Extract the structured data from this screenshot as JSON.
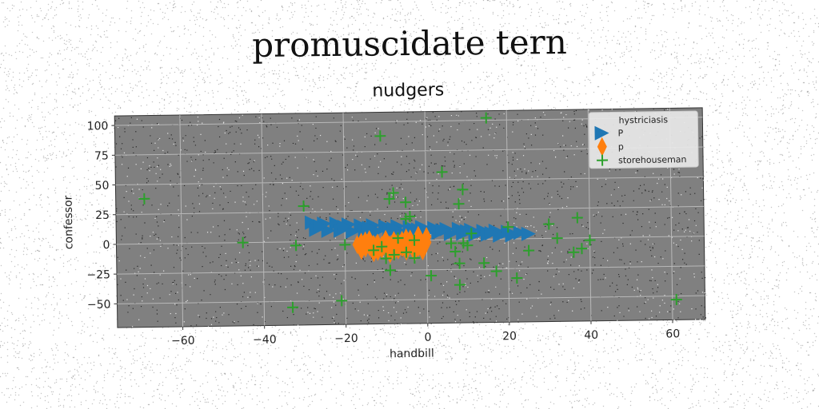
{
  "figure": {
    "suptitle": "promuscidate tern"
  },
  "chart_data": {
    "type": "scatter",
    "title": "nudgers",
    "xlabel": "handbill",
    "ylabel": "confessor",
    "xlim": [
      -76,
      68
    ],
    "ylim": [
      -70,
      108
    ],
    "xticks": [
      -60,
      -40,
      -20,
      0,
      20,
      40,
      60
    ],
    "yticks": [
      -50,
      -25,
      0,
      25,
      50,
      75,
      100
    ],
    "grid": true,
    "legend": {
      "title": "hystriciasis",
      "placement": "upper right"
    },
    "colors": {
      "axes_bg": "#808080",
      "grid": "#b8b8b8"
    },
    "series": [
      {
        "name": "P",
        "marker": "triangle-right",
        "color": "#1f77b4",
        "points": [
          [
            -28,
            16
          ],
          [
            -25,
            15
          ],
          [
            -22,
            15
          ],
          [
            -19,
            14
          ],
          [
            -16,
            13
          ],
          [
            -13,
            13
          ],
          [
            -10,
            12
          ],
          [
            -7,
            12
          ],
          [
            -4,
            11
          ],
          [
            -1,
            11
          ],
          [
            2,
            10
          ],
          [
            5,
            9
          ],
          [
            8,
            9
          ],
          [
            11,
            8
          ],
          [
            14,
            7
          ],
          [
            17,
            7
          ],
          [
            20,
            6
          ],
          [
            23,
            5
          ],
          [
            25,
            4
          ],
          [
            -27,
            10
          ],
          [
            -24,
            9
          ],
          [
            -21,
            9
          ],
          [
            -18,
            8
          ],
          [
            -15,
            8
          ],
          [
            -12,
            8
          ],
          [
            -9,
            7
          ],
          [
            -6,
            7
          ],
          [
            -3,
            7
          ],
          [
            0,
            6
          ],
          [
            3,
            6
          ],
          [
            6,
            5
          ],
          [
            9,
            5
          ],
          [
            12,
            4
          ],
          [
            15,
            4
          ],
          [
            18,
            3
          ],
          [
            21,
            3
          ],
          [
            -26,
            13
          ],
          [
            -20,
            12
          ],
          [
            -14,
            11
          ],
          [
            -8,
            10
          ],
          [
            -2,
            9
          ],
          [
            4,
            8
          ],
          [
            10,
            7
          ],
          [
            16,
            5
          ]
        ]
      },
      {
        "name": "p",
        "marker": "thin-diamond",
        "color": "#ff7f0e",
        "points": [
          [
            -17,
            -3
          ],
          [
            -16,
            -8
          ],
          [
            -15,
            0
          ],
          [
            -14,
            -5
          ],
          [
            -13,
            -10
          ],
          [
            -12,
            -2
          ],
          [
            -11,
            -7
          ],
          [
            -10,
            1
          ],
          [
            -9,
            -4
          ],
          [
            -8,
            -9
          ],
          [
            -7,
            -1
          ],
          [
            -6,
            -6
          ],
          [
            -5,
            2
          ],
          [
            -4,
            -3
          ],
          [
            -3,
            -8
          ],
          [
            -2,
            0
          ],
          [
            -1,
            -5
          ],
          [
            0,
            -2
          ],
          [
            -14,
            1
          ],
          [
            -12,
            -9
          ],
          [
            -9,
            -11
          ],
          [
            -6,
            0
          ],
          [
            -3,
            -10
          ],
          [
            0,
            3
          ],
          [
            -16,
            -1
          ],
          [
            -11,
            -4
          ],
          [
            -7,
            -8
          ],
          [
            -2,
            -6
          ],
          [
            -15,
            -6
          ],
          [
            -5,
            -9
          ],
          [
            -10,
            -6
          ],
          [
            -4,
            1
          ],
          [
            -1,
            -9
          ],
          [
            -13,
            -3
          ],
          [
            -8,
            0
          ],
          [
            -2,
            4
          ]
        ]
      },
      {
        "name": "storehouseman",
        "marker": "plus",
        "color": "#2ca02c",
        "points": [
          [
            15,
            102
          ],
          [
            -11,
            88
          ],
          [
            4,
            57
          ],
          [
            -69,
            38
          ],
          [
            -8,
            40
          ],
          [
            9,
            42
          ],
          [
            -9,
            35
          ],
          [
            -5,
            32
          ],
          [
            8,
            30
          ],
          [
            -30,
            30
          ],
          [
            -4,
            20
          ],
          [
            37,
            17
          ],
          [
            -5,
            18
          ],
          [
            20,
            10
          ],
          [
            30,
            12
          ],
          [
            -45,
            0
          ],
          [
            -32,
            -3
          ],
          [
            32,
            0
          ],
          [
            -20,
            -3
          ],
          [
            -3,
            0
          ],
          [
            6,
            -3
          ],
          [
            9,
            -3
          ],
          [
            11,
            5
          ],
          [
            25,
            -10
          ],
          [
            -7,
            2
          ],
          [
            40,
            -2
          ],
          [
            38,
            -9
          ],
          [
            36,
            -12
          ],
          [
            -11,
            -5
          ],
          [
            -13,
            -8
          ],
          [
            -8,
            -12
          ],
          [
            7,
            -10
          ],
          [
            8,
            -20
          ],
          [
            14,
            -20
          ],
          [
            17,
            -27
          ],
          [
            -9,
            -25
          ],
          [
            1,
            -30
          ],
          [
            8,
            -38
          ],
          [
            22,
            -33
          ],
          [
            -33,
            -55
          ],
          [
            -21,
            -50
          ],
          [
            61,
            -53
          ],
          [
            -10,
            -15
          ],
          [
            -5,
            -10
          ],
          [
            10,
            -5
          ],
          [
            -3,
            -15
          ]
        ]
      }
    ]
  }
}
